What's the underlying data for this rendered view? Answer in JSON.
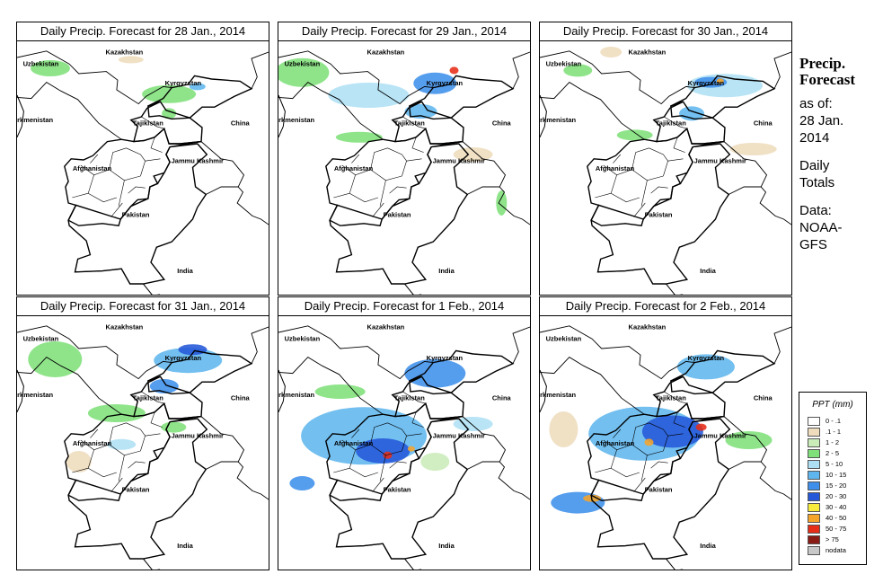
{
  "panels": [
    {
      "title": "Daily Precip. Forecast for  28 Jan., 2014",
      "blobs": [
        {
          "lon": 59.0,
          "lat": 44.0,
          "rx": 22,
          "ry": 9,
          "cls": 3
        },
        {
          "lon": 71.5,
          "lat": 41.6,
          "rx": 30,
          "ry": 10,
          "cls": 3
        },
        {
          "lon": 74.5,
          "lat": 42.3,
          "rx": 9,
          "ry": 4,
          "cls": 5
        },
        {
          "lon": 71.5,
          "lat": 39.8,
          "rx": 8,
          "ry": 6,
          "cls": 3
        },
        {
          "lon": 67.5,
          "lat": 44.8,
          "rx": 14,
          "ry": 4,
          "cls": 1
        }
      ]
    },
    {
      "title": "Daily Precip. Forecast for  29 Jan., 2014",
      "blobs": [
        {
          "lon": 58.0,
          "lat": 43.6,
          "rx": 30,
          "ry": 16,
          "cls": 3
        },
        {
          "lon": 65.0,
          "lat": 41.5,
          "rx": 45,
          "ry": 14,
          "cls": 4
        },
        {
          "lon": 72.0,
          "lat": 42.6,
          "rx": 24,
          "ry": 12,
          "cls": 6
        },
        {
          "lon": 74.0,
          "lat": 43.8,
          "rx": 5,
          "ry": 4,
          "cls": 10
        },
        {
          "lon": 70.5,
          "lat": 40.0,
          "rx": 18,
          "ry": 8,
          "cls": 5
        },
        {
          "lon": 64.0,
          "lat": 37.6,
          "rx": 26,
          "ry": 6,
          "cls": 3
        },
        {
          "lon": 76.0,
          "lat": 36.0,
          "rx": 22,
          "ry": 8,
          "cls": 1
        },
        {
          "lon": 79.0,
          "lat": 31.5,
          "rx": 6,
          "ry": 14,
          "cls": 3
        }
      ]
    },
    {
      "title": "Daily Precip. Forecast for  30 Jan., 2014",
      "blobs": [
        {
          "lon": 75.0,
          "lat": 42.4,
          "rx": 42,
          "ry": 13,
          "cls": 4
        },
        {
          "lon": 73.5,
          "lat": 42.7,
          "rx": 18,
          "ry": 6,
          "cls": 6
        },
        {
          "lon": 74.5,
          "lat": 42.8,
          "rx": 4,
          "ry": 3,
          "cls": 9
        },
        {
          "lon": 71.5,
          "lat": 39.8,
          "rx": 14,
          "ry": 8,
          "cls": 5
        },
        {
          "lon": 59.5,
          "lat": 43.8,
          "rx": 16,
          "ry": 7,
          "cls": 3
        },
        {
          "lon": 65.5,
          "lat": 37.8,
          "rx": 20,
          "ry": 6,
          "cls": 3
        },
        {
          "lon": 78.0,
          "lat": 36.5,
          "rx": 26,
          "ry": 7,
          "cls": 1
        },
        {
          "lon": 63.0,
          "lat": 45.5,
          "rx": 12,
          "ry": 6,
          "cls": 1
        }
      ]
    },
    {
      "title": "Daily Precip. Forecast for  31 Jan., 2014",
      "blobs": [
        {
          "lon": 59.5,
          "lat": 42.5,
          "rx": 30,
          "ry": 20,
          "cls": 3
        },
        {
          "lon": 73.5,
          "lat": 42.4,
          "rx": 38,
          "ry": 14,
          "cls": 5
        },
        {
          "lon": 74.0,
          "lat": 43.4,
          "rx": 16,
          "ry": 6,
          "cls": 7
        },
        {
          "lon": 71.0,
          "lat": 40.0,
          "rx": 16,
          "ry": 8,
          "cls": 6
        },
        {
          "lon": 66.0,
          "lat": 37.5,
          "rx": 32,
          "ry": 10,
          "cls": 3
        },
        {
          "lon": 66.5,
          "lat": 34.6,
          "rx": 16,
          "ry": 6,
          "cls": 4
        },
        {
          "lon": 62.0,
          "lat": 33.0,
          "rx": 14,
          "ry": 12,
          "cls": 1
        },
        {
          "lon": 72.0,
          "lat": 36.2,
          "rx": 14,
          "ry": 6,
          "cls": 3
        }
      ]
    },
    {
      "title": "Daily Precip. Forecast for  1 Feb., 2014",
      "blobs": [
        {
          "lon": 64.5,
          "lat": 35.4,
          "rx": 70,
          "ry": 32,
          "cls": 5
        },
        {
          "lon": 66.5,
          "lat": 34.0,
          "rx": 30,
          "ry": 14,
          "cls": 7
        },
        {
          "lon": 67.0,
          "lat": 33.6,
          "rx": 5,
          "ry": 4,
          "cls": 10
        },
        {
          "lon": 69.5,
          "lat": 34.2,
          "rx": 4,
          "ry": 3,
          "cls": 9
        },
        {
          "lon": 72.0,
          "lat": 41.2,
          "rx": 34,
          "ry": 16,
          "cls": 6
        },
        {
          "lon": 58.0,
          "lat": 31.0,
          "rx": 14,
          "ry": 8,
          "cls": 6
        },
        {
          "lon": 62.0,
          "lat": 39.5,
          "rx": 28,
          "ry": 8,
          "cls": 3
        },
        {
          "lon": 76.0,
          "lat": 36.5,
          "rx": 22,
          "ry": 8,
          "cls": 4
        },
        {
          "lon": 72.0,
          "lat": 33.0,
          "rx": 16,
          "ry": 10,
          "cls": 2
        }
      ]
    },
    {
      "title": "Daily Precip. Forecast for  2 Feb., 2014",
      "blobs": [
        {
          "lon": 66.5,
          "lat": 35.6,
          "rx": 62,
          "ry": 30,
          "cls": 5
        },
        {
          "lon": 69.5,
          "lat": 35.8,
          "rx": 34,
          "ry": 18,
          "cls": 7
        },
        {
          "lon": 72.5,
          "lat": 36.2,
          "rx": 6,
          "ry": 4,
          "cls": 10
        },
        {
          "lon": 67.0,
          "lat": 34.8,
          "rx": 5,
          "ry": 4,
          "cls": 9
        },
        {
          "lon": 73.0,
          "lat": 41.8,
          "rx": 32,
          "ry": 14,
          "cls": 5
        },
        {
          "lon": 59.5,
          "lat": 29.2,
          "rx": 30,
          "ry": 12,
          "cls": 6
        },
        {
          "lon": 61.0,
          "lat": 29.6,
          "rx": 10,
          "ry": 4,
          "cls": 9
        },
        {
          "lon": 77.5,
          "lat": 35.0,
          "rx": 26,
          "ry": 10,
          "cls": 3
        },
        {
          "lon": 58.0,
          "lat": 36.0,
          "rx": 16,
          "ry": 20,
          "cls": 1
        }
      ]
    }
  ],
  "place_labels": [
    {
      "name": "Kazakhstan",
      "lon": 66.8,
      "lat": 45.3
    },
    {
      "name": "Uzbekistan",
      "lon": 58.0,
      "lat": 44.2
    },
    {
      "name": "Kyrgyzstan",
      "lon": 73.0,
      "lat": 42.4
    },
    {
      "name": "Tajikistan",
      "lon": 69.3,
      "lat": 38.7
    },
    {
      "name": "China",
      "lon": 79.0,
      "lat": 38.7
    },
    {
      "name": "Turkmenistan",
      "lon": 57.0,
      "lat": 39.0
    },
    {
      "name": "Jammu Kashmir",
      "lon": 74.5,
      "lat": 35.2
    },
    {
      "name": "Afghanistan",
      "lon": 63.4,
      "lat": 34.5
    },
    {
      "name": "Pakistan",
      "lon": 68.0,
      "lat": 30.2
    },
    {
      "name": "India",
      "lon": 73.2,
      "lat": 25.0
    }
  ],
  "side_note": {
    "title_line1": "Precip.",
    "title_line2": "Forecast",
    "as_of_label": "as of:",
    "as_of_date_line1": "28 Jan.",
    "as_of_date_line2": "2014",
    "totals_line1": "Daily",
    "totals_line2": "Totals",
    "source_line1": "Data:",
    "source_line2": "NOAA-",
    "source_line3": "GFS"
  },
  "legend": {
    "title": "PPT (mm)",
    "items": [
      {
        "label": "0 - .1",
        "color": "#ffffff"
      },
      {
        "label": ".1 - 1",
        "color": "#eedcbc"
      },
      {
        "label": "1 - 2",
        "color": "#c9ecb8"
      },
      {
        "label": "2 - 5",
        "color": "#7fe07a"
      },
      {
        "label": "5 - 10",
        "color": "#aee0f5"
      },
      {
        "label": "10 - 15",
        "color": "#5fb6ee"
      },
      {
        "label": "15 - 20",
        "color": "#3e8fea"
      },
      {
        "label": "20 - 30",
        "color": "#2458d8"
      },
      {
        "label": "30 - 40",
        "color": "#f7ec3c"
      },
      {
        "label": "40 - 50",
        "color": "#f6a52b"
      },
      {
        "label": "50 - 75",
        "color": "#e62d18"
      },
      {
        "label": "> 75",
        "color": "#8a1a14"
      },
      {
        "label": "nodata",
        "color": "#c8c8c8"
      }
    ]
  }
}
